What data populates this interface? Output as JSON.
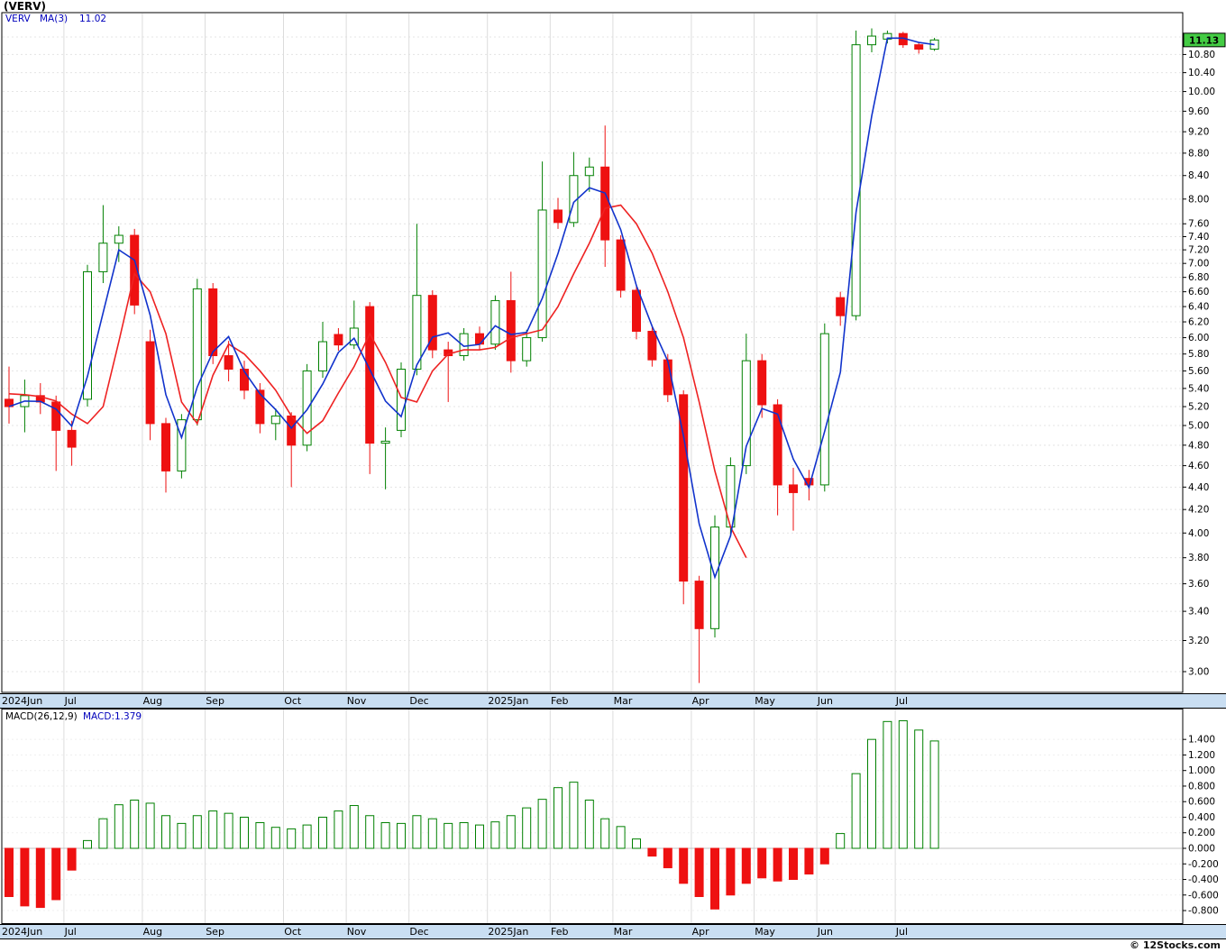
{
  "header": {
    "title": "(VERV)"
  },
  "legend": {
    "symbol": "VERV",
    "ma_label": "MA(3)",
    "ma_value": "11.02"
  },
  "price_badge": "11.13",
  "macd_legend": {
    "label": "MACD(26,12,9)",
    "value": "MACD:1.379"
  },
  "footer": {
    "copyright": "© 12Stocks.com"
  },
  "colors": {
    "up": "#008000",
    "up_fill": "#FFFFFF",
    "down": "#EE1111",
    "ma_fast": "#1133CC",
    "ma_slow": "#EE2222",
    "grid": "#E4E4E4",
    "month_strip": "#C9DEF2",
    "badge_bg": "#44CC44",
    "axis_text": "#000000"
  },
  "chart_data": [
    {
      "type": "candlestick",
      "symbol": "VERV",
      "timeframe": "weekly",
      "scale": "log",
      "ylim": [
        2.87,
        11.78
      ],
      "y_axis_labels": [
        11.2,
        10.8,
        10.4,
        10.0,
        9.6,
        9.2,
        8.8,
        8.4,
        8.0,
        7.6,
        7.4,
        7.2,
        7.0,
        6.8,
        6.6,
        6.4,
        6.2,
        6.0,
        5.8,
        5.6,
        5.4,
        5.2,
        5.0,
        4.8,
        4.6,
        4.4,
        4.2,
        4.0,
        3.8,
        3.6,
        3.4,
        3.2,
        3.0
      ],
      "months": [
        {
          "label": "2024Jun",
          "index": 0
        },
        {
          "label": "Jul",
          "index": 4
        },
        {
          "label": "Aug",
          "index": 9
        },
        {
          "label": "Sep",
          "index": 13
        },
        {
          "label": "Oct",
          "index": 18
        },
        {
          "label": "Nov",
          "index": 22
        },
        {
          "label": "Dec",
          "index": 26
        },
        {
          "label": "2025Jan",
          "index": 31
        },
        {
          "label": "Feb",
          "index": 35
        },
        {
          "label": "Mar",
          "index": 39
        },
        {
          "label": "Apr",
          "index": 44
        },
        {
          "label": "May",
          "index": 48
        },
        {
          "label": "Jun",
          "index": 52
        },
        {
          "label": "Jul",
          "index": 57
        }
      ],
      "ohlc": [
        [
          5.28,
          5.65,
          5.02,
          5.2
        ],
        [
          5.2,
          5.5,
          4.93,
          5.32
        ],
        [
          5.32,
          5.46,
          5.12,
          5.25
        ],
        [
          5.25,
          5.32,
          4.55,
          4.95
        ],
        [
          4.95,
          5.05,
          4.6,
          4.78
        ],
        [
          5.28,
          6.98,
          5.2,
          6.88
        ],
        [
          6.88,
          7.9,
          6.72,
          7.3
        ],
        [
          7.3,
          7.56,
          7.02,
          7.42
        ],
        [
          7.42,
          7.52,
          6.3,
          6.42
        ],
        [
          5.95,
          6.1,
          4.85,
          5.02
        ],
        [
          5.02,
          5.08,
          4.35,
          4.55
        ],
        [
          4.55,
          5.12,
          4.48,
          5.06
        ],
        [
          5.06,
          6.78,
          5.0,
          6.64
        ],
        [
          6.64,
          6.72,
          5.68,
          5.78
        ],
        [
          5.78,
          5.96,
          5.48,
          5.62
        ],
        [
          5.62,
          5.72,
          5.28,
          5.38
        ],
        [
          5.38,
          5.46,
          4.92,
          5.02
        ],
        [
          5.02,
          5.18,
          4.85,
          5.1
        ],
        [
          5.1,
          5.14,
          4.4,
          4.8
        ],
        [
          4.8,
          5.68,
          4.74,
          5.6
        ],
        [
          5.6,
          6.2,
          5.52,
          5.95
        ],
        [
          6.04,
          6.12,
          5.84,
          5.91
        ],
        [
          5.91,
          6.48,
          5.86,
          6.12
        ],
        [
          6.4,
          6.46,
          4.52,
          4.82
        ],
        [
          4.82,
          4.98,
          4.38,
          4.84
        ],
        [
          4.95,
          5.7,
          4.88,
          5.62
        ],
        [
          5.62,
          7.6,
          5.55,
          6.55
        ],
        [
          6.55,
          6.62,
          5.75,
          5.85
        ],
        [
          5.85,
          5.95,
          5.25,
          5.78
        ],
        [
          5.78,
          6.12,
          5.72,
          6.05
        ],
        [
          6.05,
          6.14,
          5.85,
          5.92
        ],
        [
          5.92,
          6.55,
          5.85,
          6.48
        ],
        [
          6.48,
          6.88,
          5.58,
          5.72
        ],
        [
          5.72,
          6.1,
          5.65,
          6.0
        ],
        [
          6.0,
          8.65,
          5.95,
          7.82
        ],
        [
          7.82,
          8.02,
          7.52,
          7.62
        ],
        [
          7.62,
          8.82,
          7.55,
          8.4
        ],
        [
          8.4,
          8.72,
          8.12,
          8.55
        ],
        [
          8.55,
          9.32,
          6.95,
          7.35
        ],
        [
          7.35,
          7.42,
          6.52,
          6.62
        ],
        [
          6.62,
          6.68,
          5.98,
          6.08
        ],
        [
          6.08,
          6.15,
          5.65,
          5.73
        ],
        [
          5.73,
          5.8,
          5.25,
          5.33
        ],
        [
          5.33,
          5.38,
          3.45,
          3.62
        ],
        [
          3.62,
          3.66,
          2.93,
          3.28
        ],
        [
          3.28,
          4.15,
          3.22,
          4.05
        ],
        [
          4.05,
          4.68,
          3.98,
          4.6
        ],
        [
          4.6,
          6.05,
          4.52,
          5.72
        ],
        [
          5.72,
          5.8,
          5.08,
          5.22
        ],
        [
          5.22,
          5.28,
          4.15,
          4.42
        ],
        [
          4.42,
          4.58,
          4.02,
          4.35
        ],
        [
          4.48,
          4.56,
          4.28,
          4.42
        ],
        [
          4.42,
          6.18,
          4.36,
          6.05
        ],
        [
          6.52,
          6.6,
          6.15,
          6.28
        ],
        [
          6.28,
          11.35,
          6.22,
          11.02
        ],
        [
          11.02,
          11.4,
          10.85,
          11.22
        ],
        [
          11.15,
          11.35,
          11.05,
          11.28
        ],
        [
          11.28,
          11.32,
          10.95,
          11.02
        ],
        [
          11.02,
          11.08,
          10.82,
          10.92
        ],
        [
          10.92,
          11.18,
          10.88,
          11.13
        ]
      ],
      "ma_fast_period": 3,
      "ma_fast_last": 11.02,
      "ma_slow": [
        5.34,
        5.33,
        5.31,
        5.26,
        5.12,
        5.02,
        5.2,
        5.95,
        6.85,
        6.6,
        6.05,
        5.25,
        5.02,
        5.55,
        5.92,
        5.8,
        5.6,
        5.38,
        5.1,
        4.92,
        5.05,
        5.35,
        5.65,
        6.05,
        5.7,
        5.3,
        5.25,
        5.6,
        5.8,
        5.85,
        5.85,
        5.88,
        6.0,
        6.05,
        6.1,
        6.4,
        6.85,
        7.3,
        7.85,
        7.9,
        7.6,
        7.15,
        6.6,
        6.0,
        5.25,
        4.55,
        4.05,
        3.8
      ],
      "last_close": 11.13
    },
    {
      "type": "bar",
      "name": "MACD(26,12,9) histogram",
      "current_value": 1.379,
      "y_axis_labels": [
        1.4,
        1.2,
        1.0,
        0.8,
        0.6,
        0.4,
        0.2,
        0.0,
        -0.2,
        -0.4,
        -0.6,
        -0.8
      ],
      "values": [
        -0.62,
        -0.74,
        -0.76,
        -0.66,
        -0.28,
        0.1,
        0.38,
        0.56,
        0.62,
        0.58,
        0.42,
        0.32,
        0.42,
        0.48,
        0.45,
        0.4,
        0.33,
        0.27,
        0.25,
        0.3,
        0.4,
        0.48,
        0.55,
        0.42,
        0.33,
        0.32,
        0.42,
        0.38,
        0.32,
        0.33,
        0.3,
        0.34,
        0.42,
        0.52,
        0.63,
        0.78,
        0.85,
        0.62,
        0.38,
        0.28,
        0.12,
        -0.1,
        -0.25,
        -0.45,
        -0.62,
        -0.78,
        -0.6,
        -0.45,
        -0.38,
        -0.42,
        -0.4,
        -0.33,
        -0.2,
        0.19,
        0.96,
        1.4,
        1.63,
        1.64,
        1.52,
        1.38
      ]
    }
  ]
}
